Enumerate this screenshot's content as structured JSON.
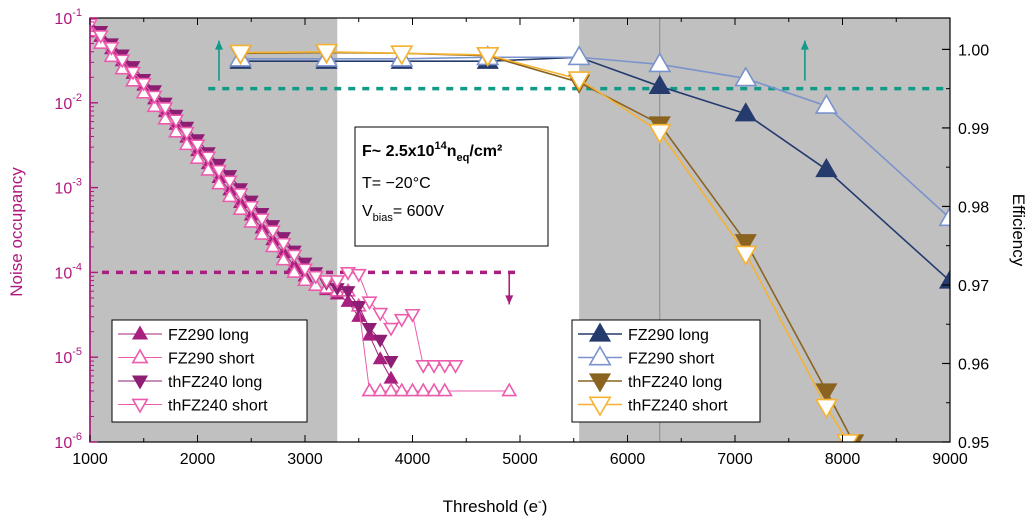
{
  "chart_data": {
    "type": "line",
    "xlabel": "Threshold (e",
    "xlabel_sup": "-",
    "xlabel_end": ")",
    "ylabel_left": "Noise occupancy",
    "ylabel_right": "Efficiency",
    "xlim": [
      1000,
      9000
    ],
    "ylim_left": [
      1e-06,
      0.1
    ],
    "yscale_left": "log",
    "ylim_right": [
      0.95,
      1.004
    ],
    "x_ticks": [
      "1000",
      "2000",
      "3000",
      "4000",
      "5000",
      "6000",
      "7000",
      "8000",
      "9000"
    ],
    "left_ticks": [
      {
        "base": "10",
        "exp": "-6",
        "value": 1e-06
      },
      {
        "base": "10",
        "exp": "-5",
        "value": 1e-05
      },
      {
        "base": "10",
        "exp": "-4",
        "value": 0.0001
      },
      {
        "base": "10",
        "exp": "-3",
        "value": 0.001
      },
      {
        "base": "10",
        "exp": "-2",
        "value": 0.01
      },
      {
        "base": "10",
        "exp": "-1",
        "value": 0.1
      }
    ],
    "right_ticks": [
      "0.95",
      "0.96",
      "0.97",
      "0.98",
      "0.99",
      "1.00"
    ],
    "right_tick_values": [
      0.95,
      0.96,
      0.97,
      0.98,
      0.99,
      1.0
    ],
    "shaded_regions": [
      [
        1000,
        3300
      ],
      [
        5550,
        9000
      ]
    ],
    "vertical_line_x": 6300,
    "noise_limit": 0.0001,
    "noise_limit_xrange": [
      1000,
      5000
    ],
    "efficiency_limit": 0.995,
    "efficiency_limit_xrange": [
      2100,
      9000
    ],
    "annotation": {
      "fluence_prefix": "F~ 2.5x10",
      "fluence_exp": "14",
      "fluence_unit": "n",
      "fluence_sub": "eq",
      "fluence_suffix": "/cm²",
      "temperature": "T= −20°C",
      "vbias_prefix": "V",
      "vbias_sub": "bias",
      "vbias_suffix": "= 600V"
    },
    "colors": {
      "noise_axis": "#b0177f",
      "noise_limit": "#a8207f",
      "efficiency_limit": "#119a88",
      "shade": "#c0c0c0"
    },
    "noise_series": [
      {
        "name": "FZ290 long",
        "color": "#a8207f",
        "marker": "triangle-up",
        "filled": true,
        "x": [
          1000,
          1100,
          1200,
          1300,
          1400,
          1500,
          1600,
          1700,
          1800,
          1900,
          2000,
          2100,
          2200,
          2300,
          2400,
          2500,
          2600,
          2700,
          2800,
          2900,
          3000,
          3100,
          3200,
          3300,
          3400,
          3500,
          3600,
          3700,
          3800,
          3900
        ],
        "y": [
          0.08,
          0.06,
          0.043,
          0.031,
          0.022,
          0.016,
          0.011,
          0.0078,
          0.0055,
          0.0039,
          0.0027,
          0.0019,
          0.0013,
          0.00093,
          0.00066,
          0.00047,
          0.00033,
          0.00024,
          0.00017,
          0.00012,
          9e-05,
          7e-05,
          6.2e-05,
          5.5e-05,
          4.5e-05,
          3e-05,
          1.8e-05,
          9.5e-06,
          5.6e-06,
          4e-06
        ]
      },
      {
        "name": "FZ290 short",
        "color": "#ec5cac",
        "marker": "triangle-up",
        "filled": false,
        "x": [
          1000,
          1100,
          1200,
          1300,
          1400,
          1500,
          1600,
          1700,
          1800,
          1900,
          2000,
          2100,
          2200,
          2300,
          2400,
          2500,
          2600,
          2700,
          2800,
          2900,
          3000,
          3100,
          3200,
          3300,
          3400,
          3500,
          3600,
          3700,
          3800,
          3900,
          4000,
          4100,
          4200,
          4300,
          4900
        ],
        "y": [
          0.07,
          0.05,
          0.035,
          0.025,
          0.018,
          0.013,
          0.009,
          0.0064,
          0.0045,
          0.0032,
          0.0022,
          0.0016,
          0.0011,
          0.00078,
          0.00055,
          0.00039,
          0.00028,
          0.0002,
          0.00014,
          0.0001,
          8e-05,
          7e-05,
          6.5e-05,
          6e-05,
          6e-05,
          4e-05,
          4e-06,
          4e-06,
          4e-06,
          4e-06,
          4e-06,
          4e-06,
          4e-06,
          4e-06,
          4e-06
        ]
      },
      {
        "name": "thFZ240 long",
        "color": "#8e1e74",
        "marker": "triangle-down",
        "filled": true,
        "x": [
          1000,
          1100,
          1200,
          1300,
          1400,
          1500,
          1600,
          1700,
          1800,
          1900,
          2000,
          2100,
          2200,
          2300,
          2400,
          2500,
          2600,
          2700,
          2800,
          2900,
          3000,
          3100,
          3200,
          3300,
          3400,
          3500,
          3600,
          3700,
          3800
        ],
        "y": [
          0.09,
          0.07,
          0.05,
          0.037,
          0.027,
          0.019,
          0.014,
          0.01,
          0.0072,
          0.0052,
          0.0037,
          0.0026,
          0.0019,
          0.0014,
          0.00098,
          0.0007,
          0.0005,
          0.00036,
          0.00026,
          0.00018,
          0.00013,
          0.0001,
          7.5e-05,
          6.5e-05,
          6e-05,
          4e-05,
          2.2e-05,
          1.6e-05,
          9e-06
        ]
      },
      {
        "name": "thFZ240 short",
        "color": "#ec5cac",
        "marker": "triangle-down",
        "filled": false,
        "x": [
          1000,
          1100,
          1200,
          1300,
          1400,
          1500,
          1600,
          1700,
          1800,
          1900,
          2000,
          2100,
          2200,
          2300,
          2400,
          2500,
          2600,
          2700,
          2800,
          2900,
          3000,
          3100,
          3200,
          3300,
          3400,
          3500,
          3600,
          3700,
          3800,
          3900,
          4000,
          4100,
          4200,
          4300,
          4400
        ],
        "y": [
          0.085,
          0.062,
          0.045,
          0.032,
          0.023,
          0.017,
          0.012,
          0.0088,
          0.0063,
          0.0045,
          0.0032,
          0.0023,
          0.0016,
          0.0012,
          0.00085,
          0.0006,
          0.00043,
          0.00031,
          0.00022,
          0.00016,
          0.00011,
          9e-05,
          8e-05,
          8e-05,
          0.0001,
          9.5e-05,
          4.5e-05,
          3.3e-05,
          2.2e-05,
          2.8e-05,
          3.2e-05,
          8e-06,
          8e-06,
          8e-06,
          8e-06
        ]
      }
    ],
    "efficiency_series": [
      {
        "name": "FZ290 long",
        "color": "#253b6e",
        "marker": "triangle-up",
        "filled": true,
        "x": [
          2400,
          3200,
          3900,
          4700,
          5550,
          6300,
          7100,
          7850,
          9000
        ],
        "y": [
          0.9985,
          0.9985,
          0.9985,
          0.9985,
          0.999,
          0.9953,
          0.9918,
          0.9847,
          0.9705
        ]
      },
      {
        "name": "FZ290 short",
        "color": "#7b93cc",
        "marker": "triangle-up",
        "filled": false,
        "x": [
          2400,
          3200,
          3900,
          4700,
          5550,
          6300,
          7100,
          7850,
          9000
        ],
        "y": [
          0.9988,
          0.9988,
          0.9988,
          0.999,
          0.999,
          0.9981,
          0.9963,
          0.9928,
          0.9785
        ]
      },
      {
        "name": "thFZ240 long",
        "color": "#8a6320",
        "marker": "triangle-down",
        "filled": true,
        "x": [
          2400,
          3200,
          3900,
          4700,
          5550,
          6300,
          7100,
          7850,
          8100
        ],
        "y": [
          0.9995,
          0.9996,
          0.9995,
          0.9992,
          0.9958,
          0.9905,
          0.9755,
          0.9565,
          0.95
        ]
      },
      {
        "name": "thFZ240 short",
        "color": "#f5b232",
        "marker": "triangle-down",
        "filled": false,
        "x": [
          2400,
          3200,
          3900,
          4700,
          5550,
          6300,
          7100,
          7850,
          8050
        ],
        "y": [
          0.9996,
          0.9997,
          0.9995,
          0.9993,
          0.9962,
          0.9895,
          0.974,
          0.9545,
          0.95
        ]
      }
    ]
  }
}
